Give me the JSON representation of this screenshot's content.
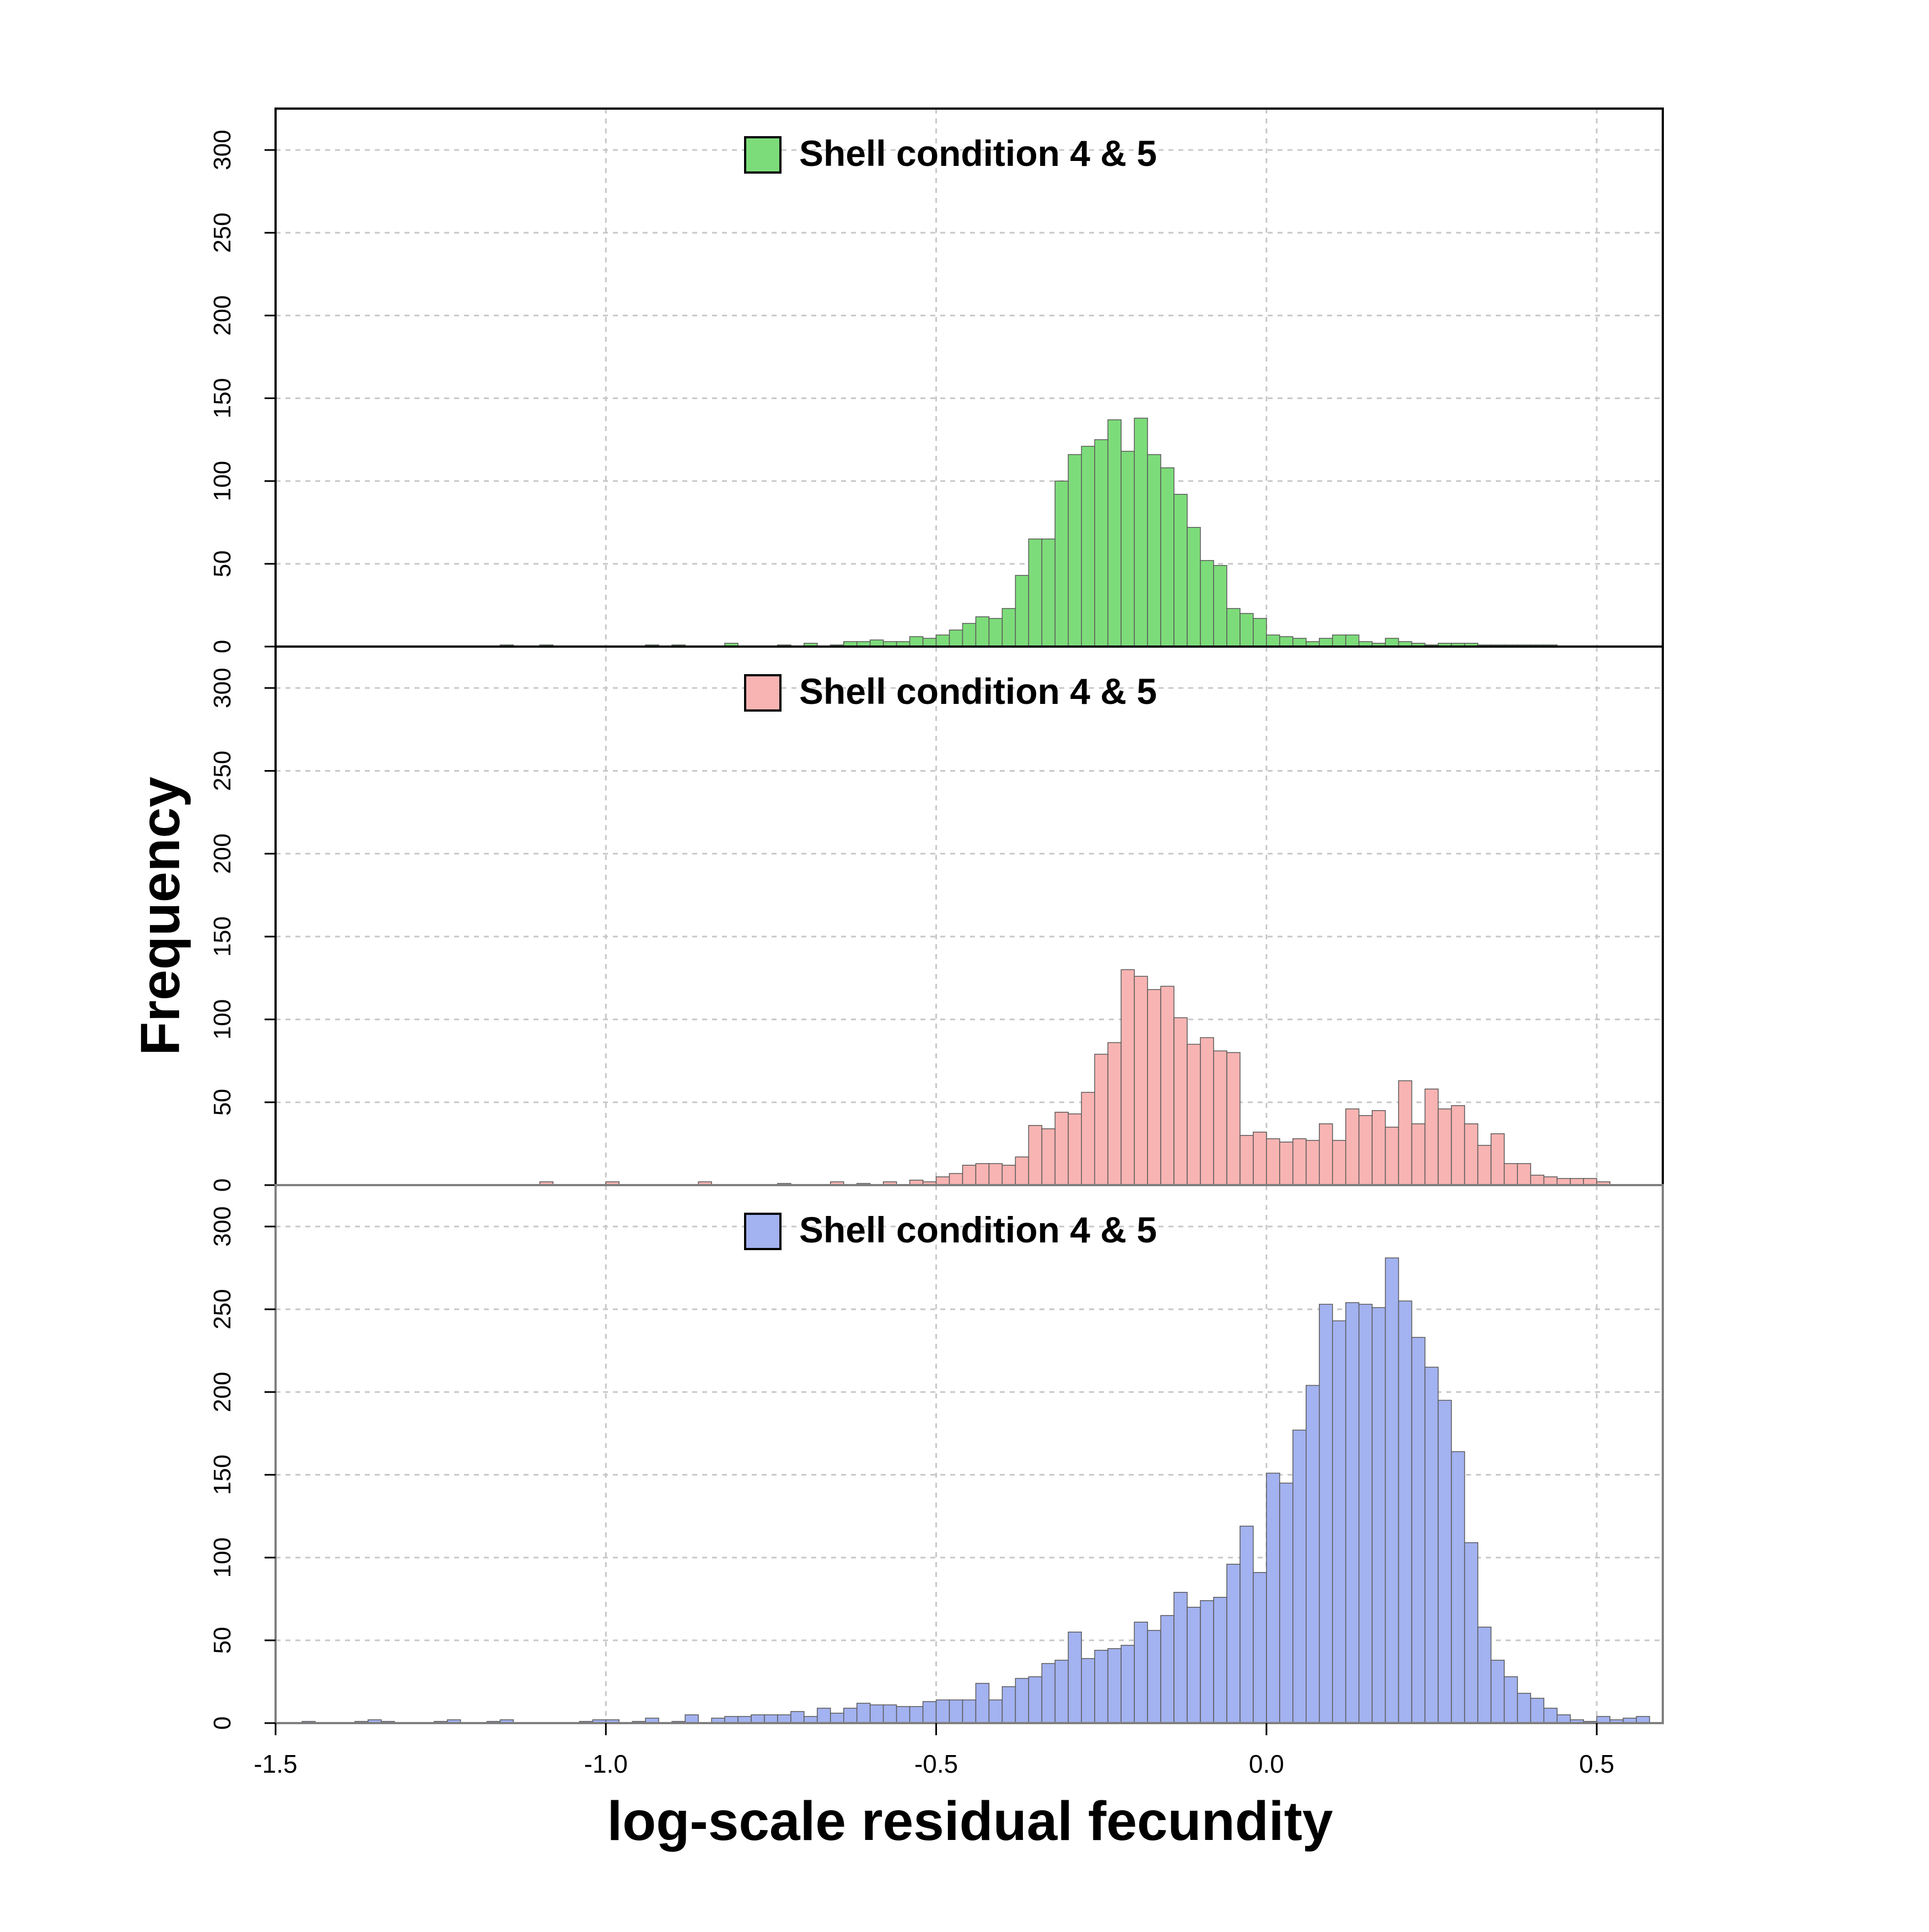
{
  "chart_data": {
    "type": "bar",
    "xlabel": "log-scale residual fecundity",
    "ylabel": "Frequency",
    "xlim": [
      -1.5,
      0.6
    ],
    "ylim": [
      0,
      325
    ],
    "bin_width": 0.02,
    "x_ticks": [
      -1.5,
      -1.0,
      -0.5,
      0.0,
      0.5
    ],
    "x_tick_labels": [
      "-1.5",
      "-1.0",
      "-0.5",
      "0.0",
      "0.5"
    ],
    "y_ticks": [
      0,
      50,
      100,
      150,
      200,
      250,
      300
    ],
    "y_tick_labels": [
      "0",
      "50",
      "100",
      "150",
      "200",
      "250",
      "300"
    ],
    "grid": true,
    "legend_position": "top-center",
    "panels": [
      {
        "legend_label": "Shell condition 4 & 5",
        "color": "#7ddc7a",
        "border_color": "#5a5a5a",
        "bin_starts": [
          -1.16,
          -1.1,
          -0.94,
          -0.9,
          -0.82,
          -0.74,
          -0.7,
          -0.66,
          -0.64,
          -0.62,
          -0.6,
          -0.58,
          -0.56,
          -0.54,
          -0.52,
          -0.5,
          -0.48,
          -0.46,
          -0.44,
          -0.42,
          -0.4,
          -0.38,
          -0.36,
          -0.34,
          -0.32,
          -0.3,
          -0.28,
          -0.26,
          -0.24,
          -0.22,
          -0.2,
          -0.18,
          -0.16,
          -0.14,
          -0.12,
          -0.1,
          -0.08,
          -0.06,
          -0.04,
          -0.02,
          0.0,
          0.02,
          0.04,
          0.06,
          0.08,
          0.1,
          0.12,
          0.14,
          0.16,
          0.18,
          0.2,
          0.22,
          0.24,
          0.26,
          0.28,
          0.3,
          0.32,
          0.34,
          0.36,
          0.38,
          0.4,
          0.42
        ],
        "counts": [
          1,
          1,
          1,
          1,
          2,
          1,
          2,
          1,
          3,
          3,
          4,
          3,
          3,
          6,
          5,
          7,
          10,
          14,
          18,
          17,
          23,
          43,
          65,
          65,
          100,
          116,
          121,
          125,
          137,
          118,
          138,
          116,
          108,
          92,
          72,
          52,
          49,
          23,
          20,
          17,
          7,
          6,
          5,
          3,
          5,
          7,
          7,
          3,
          2,
          5,
          3,
          2,
          1,
          2,
          2,
          2,
          1,
          1,
          1,
          1,
          1,
          1
        ]
      },
      {
        "legend_label": "Shell condition 4 & 5",
        "color": "#f8b4b2",
        "border_color": "#5a5a5a",
        "bin_starts": [
          -1.1,
          -1.0,
          -0.86,
          -0.74,
          -0.66,
          -0.62,
          -0.58,
          -0.54,
          -0.52,
          -0.5,
          -0.48,
          -0.46,
          -0.44,
          -0.42,
          -0.4,
          -0.38,
          -0.36,
          -0.34,
          -0.32,
          -0.3,
          -0.28,
          -0.26,
          -0.24,
          -0.22,
          -0.2,
          -0.18,
          -0.16,
          -0.14,
          -0.12,
          -0.1,
          -0.08,
          -0.06,
          -0.04,
          -0.02,
          0.0,
          0.02,
          0.04,
          0.06,
          0.08,
          0.1,
          0.12,
          0.14,
          0.16,
          0.18,
          0.2,
          0.22,
          0.24,
          0.26,
          0.28,
          0.3,
          0.32,
          0.34,
          0.36,
          0.38,
          0.4,
          0.42,
          0.44,
          0.46,
          0.48,
          0.5
        ],
        "counts": [
          2,
          2,
          2,
          1,
          2,
          1,
          2,
          3,
          2,
          5,
          7,
          12,
          13,
          13,
          12,
          17,
          36,
          34,
          44,
          43,
          56,
          79,
          86,
          130,
          126,
          118,
          120,
          101,
          85,
          89,
          81,
          80,
          30,
          32,
          28,
          26,
          28,
          27,
          37,
          27,
          46,
          42,
          45,
          35,
          63,
          37,
          58,
          46,
          48,
          37,
          24,
          31,
          13,
          13,
          6,
          5,
          4,
          4,
          4,
          2
        ]
      },
      {
        "legend_label": "Shell condition 4 & 5",
        "color": "#a3b2f0",
        "border_color": "#5a5a5a",
        "bin_starts": [
          -1.46,
          -1.38,
          -1.36,
          -1.34,
          -1.26,
          -1.24,
          -1.18,
          -1.16,
          -1.04,
          -1.02,
          -1.0,
          -0.96,
          -0.94,
          -0.9,
          -0.88,
          -0.84,
          -0.82,
          -0.8,
          -0.78,
          -0.76,
          -0.74,
          -0.72,
          -0.7,
          -0.68,
          -0.66,
          -0.64,
          -0.62,
          -0.6,
          -0.58,
          -0.56,
          -0.54,
          -0.52,
          -0.5,
          -0.48,
          -0.46,
          -0.44,
          -0.42,
          -0.4,
          -0.38,
          -0.36,
          -0.34,
          -0.32,
          -0.3,
          -0.28,
          -0.26,
          -0.24,
          -0.22,
          -0.2,
          -0.18,
          -0.16,
          -0.14,
          -0.12,
          -0.1,
          -0.08,
          -0.06,
          -0.04,
          -0.02,
          0.0,
          0.02,
          0.04,
          0.06,
          0.08,
          0.1,
          0.12,
          0.14,
          0.16,
          0.18,
          0.2,
          0.22,
          0.24,
          0.26,
          0.28,
          0.3,
          0.32,
          0.34,
          0.36,
          0.38,
          0.4,
          0.42,
          0.44,
          0.46,
          0.48,
          0.5,
          0.52,
          0.54,
          0.56
        ],
        "counts": [
          1,
          1,
          2,
          1,
          1,
          2,
          1,
          2,
          1,
          2,
          2,
          1,
          3,
          1,
          5,
          3,
          4,
          4,
          5,
          5,
          5,
          7,
          4,
          9,
          6,
          9,
          12,
          11,
          11,
          10,
          10,
          13,
          14,
          14,
          14,
          24,
          14,
          22,
          27,
          28,
          36,
          38,
          55,
          39,
          44,
          45,
          47,
          61,
          56,
          65,
          79,
          70,
          74,
          76,
          96,
          119,
          91,
          151,
          145,
          177,
          204,
          253,
          243,
          254,
          253,
          251,
          281,
          255,
          233,
          215,
          195,
          164,
          109,
          58,
          38,
          28,
          18,
          15,
          9,
          5,
          2,
          1,
          4,
          2,
          3,
          4
        ]
      }
    ]
  }
}
